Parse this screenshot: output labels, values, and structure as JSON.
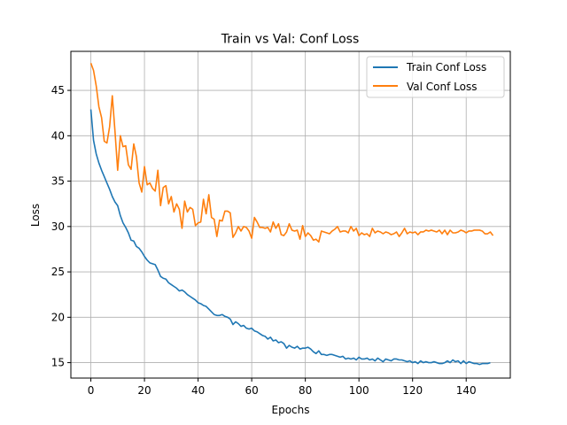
{
  "chart_data": {
    "type": "line",
    "title": "Train vs Val: Conf Loss",
    "xlabel": "Epochs",
    "ylabel": "Loss",
    "xlim": [
      -7.45,
      156.45
    ],
    "ylim": [
      13.3,
      49.3
    ],
    "xticks": [
      0,
      20,
      40,
      60,
      80,
      100,
      120,
      140
    ],
    "yticks": [
      15,
      20,
      25,
      30,
      35,
      40,
      45
    ],
    "grid": true,
    "legend_position": "top-right",
    "series": [
      {
        "name": "Train Conf Loss",
        "color": "#1f77b4",
        "values": [
          42.9,
          39.5,
          38.0,
          37.0,
          36.2,
          35.5,
          34.8,
          34.1,
          33.3,
          32.7,
          32.3,
          31.2,
          30.4,
          29.9,
          29.3,
          28.5,
          28.4,
          27.8,
          27.6,
          27.2,
          26.7,
          26.3,
          26.0,
          25.9,
          25.8,
          25.2,
          24.5,
          24.3,
          24.2,
          23.8,
          23.6,
          23.4,
          23.2,
          22.9,
          23.0,
          22.8,
          22.5,
          22.3,
          22.1,
          21.9,
          21.6,
          21.5,
          21.3,
          21.2,
          20.9,
          20.6,
          20.3,
          20.2,
          20.2,
          20.3,
          20.1,
          20.0,
          19.8,
          19.2,
          19.5,
          19.3,
          19.0,
          19.1,
          18.8,
          18.7,
          18.8,
          18.5,
          18.4,
          18.2,
          18.0,
          17.9,
          17.6,
          17.8,
          17.4,
          17.5,
          17.2,
          17.3,
          17.1,
          16.6,
          16.9,
          16.7,
          16.6,
          16.8,
          16.5,
          16.6,
          16.6,
          16.7,
          16.5,
          16.2,
          16.0,
          16.3,
          15.9,
          15.9,
          15.8,
          15.9,
          15.9,
          15.8,
          15.7,
          15.6,
          15.7,
          15.4,
          15.5,
          15.4,
          15.5,
          15.3,
          15.6,
          15.4,
          15.4,
          15.5,
          15.3,
          15.4,
          15.2,
          15.5,
          15.3,
          15.1,
          15.4,
          15.3,
          15.2,
          15.4,
          15.4,
          15.3,
          15.3,
          15.2,
          15.1,
          15.2,
          15.0,
          15.1,
          14.9,
          15.2,
          15.0,
          15.1,
          15.0,
          15.0,
          15.1,
          15.0,
          14.9,
          14.9,
          15.0,
          15.2,
          15.0,
          15.3,
          15.1,
          15.2,
          14.9,
          15.2,
          14.9,
          15.1,
          15.0,
          14.9,
          14.9,
          14.8,
          14.9,
          14.9,
          14.9,
          15.0
        ],
        "x_start": 0
      },
      {
        "name": "Val Conf Loss",
        "color": "#ff7f0e",
        "values": [
          48.0,
          47.2,
          45.5,
          43.2,
          42.0,
          39.4,
          39.2,
          41.0,
          44.4,
          40.5,
          36.2,
          40.0,
          38.8,
          38.9,
          36.8,
          36.3,
          39.1,
          37.7,
          34.8,
          33.8,
          36.6,
          34.6,
          34.8,
          34.2,
          33.9,
          36.2,
          32.3,
          34.3,
          34.5,
          32.5,
          33.3,
          31.6,
          32.5,
          31.9,
          29.8,
          32.8,
          31.6,
          32.1,
          31.9,
          30.1,
          30.4,
          30.5,
          33.0,
          31.4,
          33.5,
          31.0,
          30.8,
          28.9,
          30.7,
          30.6,
          31.7,
          31.7,
          31.5,
          28.8,
          29.3,
          30.0,
          29.5,
          30.0,
          29.9,
          29.5,
          28.7,
          31.0,
          30.5,
          29.9,
          29.9,
          29.8,
          29.9,
          29.4,
          30.5,
          29.8,
          30.3,
          29.1,
          29.0,
          29.4,
          30.3,
          29.6,
          29.5,
          29.6,
          28.6,
          30.1,
          28.9,
          29.3,
          29.0,
          28.5,
          28.6,
          28.3,
          29.5,
          29.4,
          29.3,
          29.2,
          29.5,
          29.7,
          30.0,
          29.4,
          29.5,
          29.5,
          29.3,
          30.0,
          29.5,
          29.8,
          29.0,
          29.3,
          29.1,
          29.2,
          28.9,
          29.8,
          29.3,
          29.5,
          29.4,
          29.2,
          29.4,
          29.3,
          29.1,
          29.2,
          29.4,
          28.9,
          29.3,
          29.8,
          29.2,
          29.4,
          29.3,
          29.4,
          29.1,
          29.4,
          29.4,
          29.6,
          29.5,
          29.6,
          29.5,
          29.4,
          29.6,
          29.2,
          29.6,
          29.1,
          29.6,
          29.3,
          29.3,
          29.4,
          29.6,
          29.5,
          29.3,
          29.5,
          29.5,
          29.6,
          29.6,
          29.6,
          29.5,
          29.2,
          29.2,
          29.4,
          29.0
        ],
        "x_start": 0
      }
    ]
  }
}
